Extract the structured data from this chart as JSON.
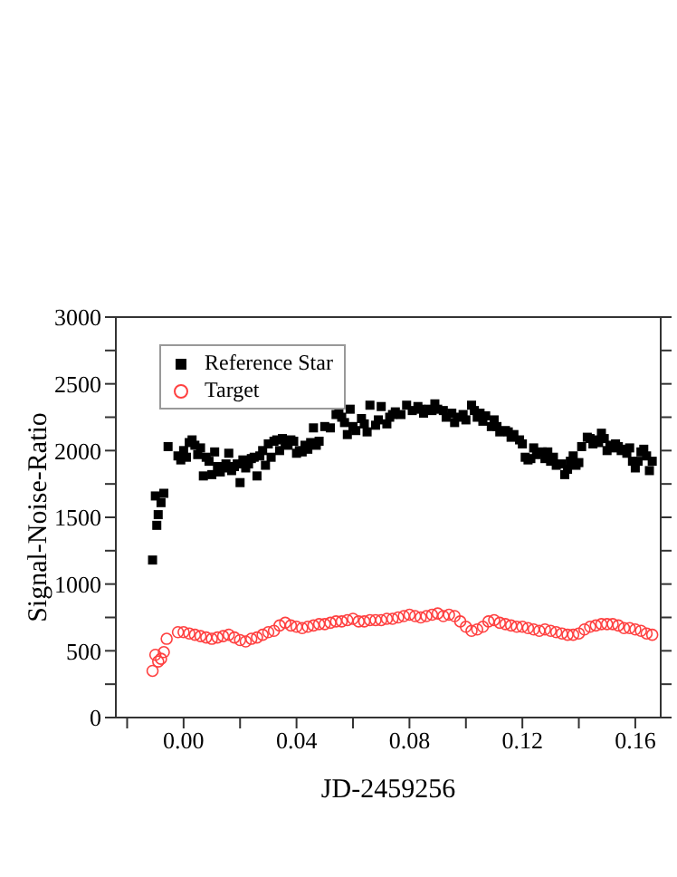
{
  "chart_data": {
    "type": "scatter",
    "xlabel": "JD-2459256",
    "ylabel": "Signal-Noise-Ratio",
    "xlim": [
      -0.024,
      0.169
    ],
    "ylim": [
      0,
      3000
    ],
    "xticks": [
      {
        "value": -0.02,
        "label": null
      },
      {
        "value": 0,
        "label": "0.00"
      },
      {
        "value": 0.02,
        "label": null
      },
      {
        "value": 0.04,
        "label": "0.04"
      },
      {
        "value": 0.06,
        "label": null
      },
      {
        "value": 0.08,
        "label": "0.08"
      },
      {
        "value": 0.1,
        "label": null
      },
      {
        "value": 0.12,
        "label": "0.12"
      },
      {
        "value": 0.14,
        "label": null
      },
      {
        "value": 0.16,
        "label": "0.16"
      }
    ],
    "yticks": [
      0,
      {
        "value": 250,
        "label": null
      },
      500,
      {
        "value": 750,
        "label": null
      },
      1000,
      {
        "value": 1250,
        "label": null
      },
      1500,
      {
        "value": 1750,
        "label": null
      },
      2000,
      {
        "value": 2250,
        "label": null
      },
      2500,
      {
        "value": 2750,
        "label": null
      },
      3000
    ],
    "grid": false,
    "legend": "top left",
    "series": [
      {
        "name": "Reference Star",
        "color": "#000000",
        "marker": "square",
        "x": [
          -0.011,
          -0.01,
          -0.0095,
          -0.009,
          -0.008,
          -0.007,
          -0.0055,
          -0.002,
          -0.001,
          0.0,
          0.001,
          0.002,
          0.003,
          0.004,
          0.005,
          0.006,
          0.007,
          0.008,
          0.009,
          0.01,
          0.011,
          0.012,
          0.013,
          0.014,
          0.015,
          0.016,
          0.017,
          0.018,
          0.019,
          0.02,
          0.021,
          0.022,
          0.023,
          0.024,
          0.025,
          0.026,
          0.027,
          0.028,
          0.029,
          0.03,
          0.031,
          0.032,
          0.033,
          0.034,
          0.035,
          0.036,
          0.037,
          0.038,
          0.039,
          0.04,
          0.041,
          0.042,
          0.043,
          0.044,
          0.045,
          0.046,
          0.047,
          0.048,
          0.05,
          0.052,
          0.054,
          0.055,
          0.056,
          0.057,
          0.058,
          0.059,
          0.06,
          0.061,
          0.063,
          0.064,
          0.065,
          0.066,
          0.068,
          0.069,
          0.07,
          0.072,
          0.073,
          0.074,
          0.075,
          0.077,
          0.079,
          0.081,
          0.083,
          0.084,
          0.085,
          0.087,
          0.088,
          0.089,
          0.09,
          0.092,
          0.093,
          0.095,
          0.096,
          0.097,
          0.099,
          0.1,
          0.102,
          0.103,
          0.104,
          0.105,
          0.106,
          0.107,
          0.109,
          0.11,
          0.111,
          0.112,
          0.114,
          0.115,
          0.116,
          0.117,
          0.119,
          0.12,
          0.121,
          0.122,
          0.123,
          0.124,
          0.125,
          0.127,
          0.128,
          0.129,
          0.13,
          0.131,
          0.132,
          0.134,
          0.135,
          0.136,
          0.137,
          0.138,
          0.139,
          0.14,
          0.141,
          0.143,
          0.144,
          0.145,
          0.146,
          0.147,
          0.148,
          0.149,
          0.15,
          0.151,
          0.152,
          0.153,
          0.154,
          0.155,
          0.156,
          0.157,
          0.158,
          0.159,
          0.16,
          0.161,
          0.162,
          0.163,
          0.164,
          0.165,
          0.166
        ],
        "values": [
          1180,
          1660,
          1440,
          1520,
          1610,
          1680,
          2030,
          1960,
          1930,
          2000,
          1950,
          2060,
          2080,
          2040,
          1970,
          2020,
          1810,
          1950,
          1920,
          1820,
          1990,
          1880,
          1840,
          1870,
          1900,
          1980,
          1850,
          1880,
          1900,
          1760,
          1930,
          1870,
          1900,
          1940,
          1950,
          1810,
          1960,
          2000,
          1890,
          2050,
          1950,
          2070,
          2080,
          2000,
          2090,
          2050,
          2040,
          2080,
          2070,
          1980,
          2000,
          1990,
          2040,
          2010,
          2060,
          2170,
          2040,
          2070,
          2180,
          2170,
          2270,
          2290,
          2250,
          2210,
          2120,
          2310,
          2180,
          2150,
          2240,
          2200,
          2140,
          2340,
          2190,
          2230,
          2330,
          2200,
          2250,
          2270,
          2290,
          2270,
          2340,
          2300,
          2330,
          2310,
          2280,
          2310,
          2300,
          2350,
          2310,
          2300,
          2250,
          2280,
          2210,
          2250,
          2270,
          2230,
          2340,
          2300,
          2250,
          2280,
          2220,
          2260,
          2180,
          2230,
          2180,
          2140,
          2150,
          2140,
          2100,
          2120,
          2080,
          2050,
          1950,
          1930,
          1940,
          2020,
          1970,
          1990,
          1940,
          1990,
          1920,
          1950,
          1890,
          1900,
          1820,
          1860,
          1920,
          1960,
          1890,
          1910,
          2030,
          2100,
          2090,
          2050,
          2080,
          2060,
          2130,
          2090,
          2000,
          2040,
          2020,
          2050,
          2030,
          2000,
          2010,
          1980,
          2020,
          1920,
          1870,
          1920,
          1990,
          2010,
          1960,
          1850,
          1920
        ]
      },
      {
        "name": "Target",
        "color": "#ff4040",
        "marker": "circle",
        "x": [
          -0.011,
          -0.01,
          -0.009,
          -0.008,
          -0.007,
          -0.006,
          -0.002,
          0.0,
          0.002,
          0.004,
          0.006,
          0.008,
          0.01,
          0.012,
          0.014,
          0.016,
          0.018,
          0.02,
          0.022,
          0.024,
          0.026,
          0.028,
          0.03,
          0.032,
          0.034,
          0.036,
          0.038,
          0.04,
          0.042,
          0.044,
          0.046,
          0.048,
          0.05,
          0.052,
          0.054,
          0.056,
          0.058,
          0.06,
          0.062,
          0.064,
          0.066,
          0.068,
          0.07,
          0.072,
          0.074,
          0.076,
          0.078,
          0.08,
          0.082,
          0.084,
          0.086,
          0.088,
          0.09,
          0.092,
          0.094,
          0.096,
          0.098,
          0.1,
          0.102,
          0.104,
          0.106,
          0.108,
          0.11,
          0.112,
          0.114,
          0.116,
          0.118,
          0.12,
          0.122,
          0.124,
          0.126,
          0.128,
          0.13,
          0.132,
          0.134,
          0.136,
          0.138,
          0.14,
          0.142,
          0.144,
          0.146,
          0.148,
          0.15,
          0.152,
          0.154,
          0.156,
          0.158,
          0.16,
          0.162,
          0.164,
          0.166
        ],
        "values": [
          350,
          470,
          420,
          440,
          490,
          590,
          640,
          640,
          630,
          620,
          610,
          600,
          590,
          600,
          610,
          620,
          600,
          580,
          570,
          590,
          600,
          620,
          640,
          650,
          690,
          710,
          690,
          680,
          670,
          680,
          690,
          700,
          700,
          710,
          720,
          720,
          730,
          740,
          720,
          720,
          730,
          730,
          730,
          740,
          740,
          750,
          760,
          770,
          760,
          750,
          760,
          770,
          780,
          760,
          770,
          760,
          720,
          680,
          650,
          660,
          680,
          720,
          730,
          710,
          700,
          690,
          680,
          680,
          670,
          660,
          650,
          660,
          650,
          640,
          630,
          620,
          620,
          630,
          660,
          680,
          690,
          700,
          700,
          700,
          690,
          670,
          670,
          660,
          650,
          630,
          620
        ]
      }
    ]
  }
}
